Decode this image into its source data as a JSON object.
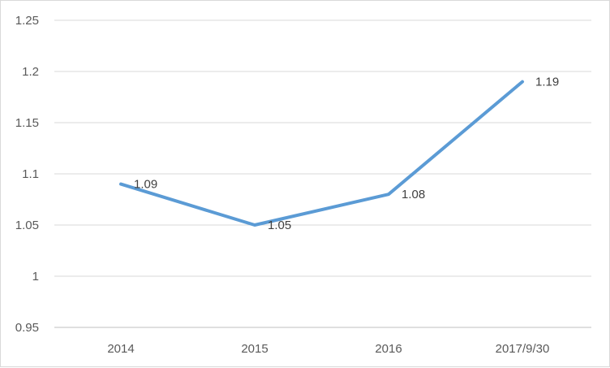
{
  "chart_data": {
    "type": "line",
    "categories": [
      "2014",
      "2015",
      "2016",
      "2017/9/30"
    ],
    "series": [
      {
        "values": [
          1.09,
          1.05,
          1.08,
          1.19
        ]
      }
    ],
    "data_labels": [
      "1.09",
      "1.05",
      "1.08",
      "1.19"
    ],
    "ylim": [
      0.95,
      1.25
    ],
    "yticks": [
      0.95,
      1,
      1.05,
      1.1,
      1.15,
      1.2,
      1.25
    ],
    "ytick_labels": [
      "0.95",
      "1",
      "1.05",
      "1.1",
      "1.15",
      "1.2",
      "1.25"
    ],
    "grid": true,
    "legend": "none",
    "colors": {
      "line": "#5b9bd5",
      "grid": "#d9d9d9",
      "axis": "#bfbfbf"
    }
  }
}
